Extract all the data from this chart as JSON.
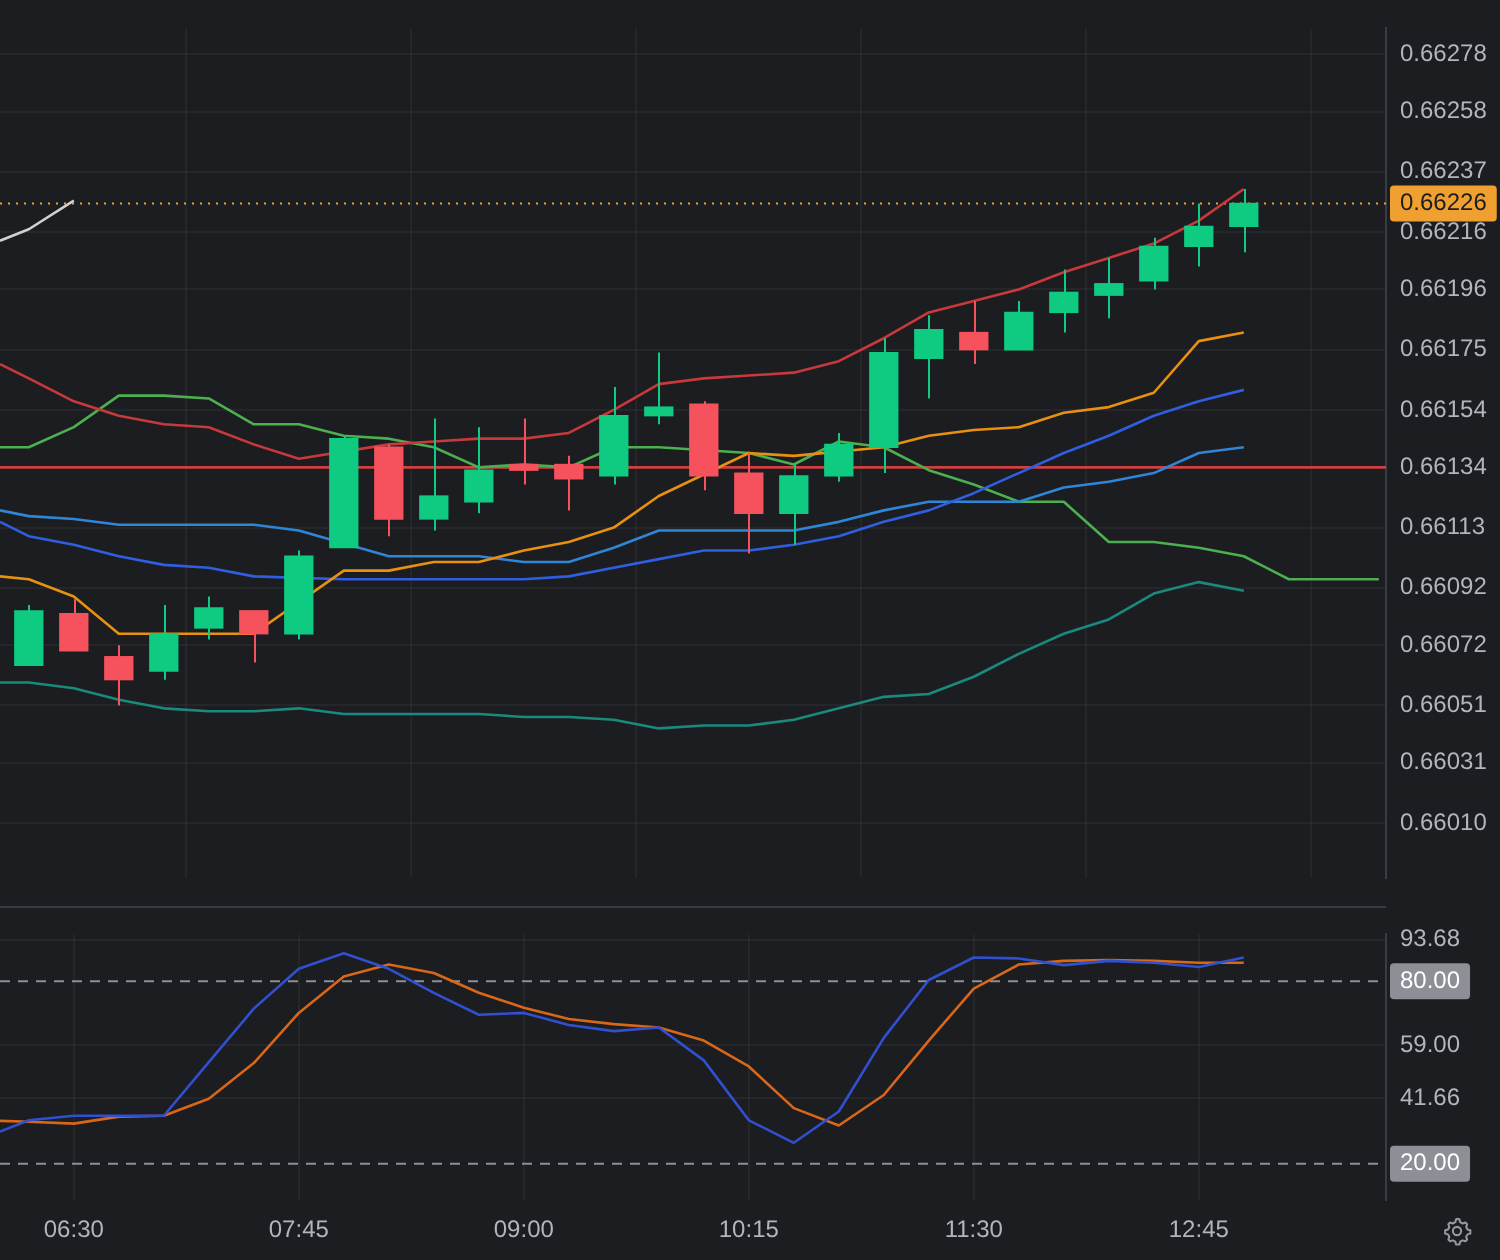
{
  "chart_data": [
    {
      "type": "candlestick",
      "x": [
        6.25,
        6.5,
        6.75,
        7,
        7.25,
        7.5,
        7.75,
        8,
        8.25,
        8.5,
        8.75,
        9,
        9.25,
        9.5,
        9.75,
        10,
        10.25,
        10.5,
        10.75,
        11,
        11.25,
        11.5,
        11.75,
        12,
        12.25,
        12.5,
        12.75,
        13
      ],
      "ohlc": [
        [
          0.66065,
          0.66086,
          0.66065,
          0.66084
        ],
        [
          0.66083,
          0.66088,
          0.6607,
          0.6607
        ],
        [
          0.66068,
          0.66072,
          0.66051,
          0.6606
        ],
        [
          0.66063,
          0.66086,
          0.6606,
          0.66076
        ],
        [
          0.66078,
          0.66089,
          0.66074,
          0.66085
        ],
        [
          0.66084,
          0.66084,
          0.66066,
          0.66076
        ],
        [
          0.66076,
          0.66105,
          0.66074,
          0.66103
        ],
        [
          0.66106,
          0.66145,
          0.66106,
          0.66144
        ],
        [
          0.66141,
          0.66142,
          0.6611,
          0.66116
        ],
        [
          0.66116,
          0.66151,
          0.66112,
          0.66124
        ],
        [
          0.66122,
          0.66148,
          0.66118,
          0.66133
        ],
        [
          0.66135,
          0.66151,
          0.66128,
          0.66133
        ],
        [
          0.66135,
          0.66138,
          0.66119,
          0.6613
        ],
        [
          0.66131,
          0.66162,
          0.66128,
          0.66152
        ],
        [
          0.66152,
          0.66174,
          0.66149,
          0.66155
        ],
        [
          0.66156,
          0.66157,
          0.66126,
          0.66131
        ],
        [
          0.66132,
          0.66139,
          0.66104,
          0.66118
        ],
        [
          0.66118,
          0.66135,
          0.66107,
          0.66131
        ],
        [
          0.66131,
          0.66146,
          0.66129,
          0.66142
        ],
        [
          0.66141,
          0.66179,
          0.66132,
          0.66174
        ],
        [
          0.66172,
          0.66187,
          0.66158,
          0.66182
        ],
        [
          0.66181,
          0.66192,
          0.6617,
          0.66175
        ],
        [
          0.66175,
          0.66192,
          0.66175,
          0.66188
        ],
        [
          0.66188,
          0.66203,
          0.66181,
          0.66195
        ],
        [
          0.66194,
          0.66207,
          0.66186,
          0.66198
        ],
        [
          0.66199,
          0.66214,
          0.66196,
          0.66211
        ],
        [
          0.66211,
          0.66226,
          0.66204,
          0.66218
        ],
        [
          0.66218,
          0.66231,
          0.66209,
          0.66226
        ]
      ],
      "colors": [
        "#0ecb81",
        "#f6525d",
        "#f6525d",
        "#0ecb81",
        "#0ecb81",
        "#f6525d",
        "#0ecb81",
        "#0ecb81",
        "#f6525d",
        "#0ecb81",
        "#0ecb81",
        "#f6525d",
        "#f6525d",
        "#0ecb81",
        "#0ecb81",
        "#f6525d",
        "#f6525d",
        "#0ecb81",
        "#0ecb81",
        "#0ecb81",
        "#0ecb81",
        "#f6525d",
        "#0ecb81",
        "#0ecb81",
        "#0ecb81",
        "#0ecb81",
        "#0ecb81",
        "#0ecb81"
      ],
      "series": [
        {
          "type": "line",
          "color": "#c8393c",
          "x": [
            6.09,
            6.25,
            6.5,
            6.75,
            7,
            7.25,
            7.5,
            7.75,
            8,
            8.25,
            8.5,
            8.75,
            9,
            9.25,
            9.5,
            9.75,
            10,
            10.25,
            10.5,
            10.75,
            11,
            11.25,
            11.5,
            11.75,
            12,
            12.25,
            12.5,
            12.75,
            13
          ],
          "values": [
            0.6617,
            0.66165,
            0.66157,
            0.66152,
            0.66149,
            0.66148,
            0.66142,
            0.66137,
            null,
            0.66142,
            0.66143,
            0.66144,
            0.66144,
            0.66146,
            0.66154,
            0.66163,
            0.66165,
            0.66166,
            0.66167,
            0.66171,
            0.66179,
            0.66188,
            0.66192,
            0.66196,
            0.66202,
            0.66207,
            0.66212,
            0.6622,
            0.66231
          ]
        },
        {
          "type": "line",
          "color": "#e8900f",
          "x": [
            6.09,
            6.25,
            6.5,
            6.75,
            7,
            7.25,
            7.5,
            7.75,
            8,
            8.25,
            8.5,
            8.75,
            9,
            9.25,
            9.5,
            9.75,
            10,
            10.25,
            10.5,
            10.75,
            11,
            11.25,
            11.5,
            11.75,
            12,
            12.25,
            12.5,
            12.75,
            13
          ],
          "values": [
            0.66096,
            0.66095,
            0.66089,
            0.66076,
            0.66076,
            0.66076,
            0.66076,
            null,
            0.66098,
            0.66098,
            0.66101,
            0.66101,
            0.66105,
            0.66108,
            0.66113,
            0.66124,
            null,
            0.66139,
            0.66138,
            null,
            0.66141,
            0.66145,
            0.66147,
            0.66148,
            0.66153,
            0.66155,
            0.6616,
            0.66178,
            0.66181
          ]
        },
        {
          "type": "line",
          "color": "#2f5fe0",
          "x": [
            6.09,
            6.25,
            6.5,
            6.75,
            7,
            7.25,
            7.5,
            7.75,
            8,
            8.25,
            8.5,
            8.75,
            9,
            9.25,
            9.5,
            9.75,
            10,
            10.25,
            10.5,
            10.75,
            11,
            11.25,
            11.5,
            11.75,
            12,
            12.25,
            12.5,
            12.75,
            13
          ],
          "values": [
            0.66115,
            0.6611,
            0.66107,
            0.66103,
            0.661,
            0.66099,
            0.66096,
            null,
            0.66095,
            0.66095,
            0.66095,
            0.66095,
            0.66095,
            0.66096,
            0.66099,
            0.66102,
            0.66105,
            0.66105,
            0.66107,
            0.6611,
            0.66115,
            0.66119,
            0.66125,
            0.66132,
            0.66139,
            0.66145,
            0.66152,
            0.66157,
            0.66161
          ]
        },
        {
          "type": "line",
          "color": "#2f86d6",
          "x": [
            6.09,
            6.25,
            6.5,
            6.75,
            7,
            7.25,
            7.5,
            7.75,
            8,
            8.25,
            8.5,
            8.75,
            9,
            9.25,
            9.5,
            9.75,
            10,
            10.25,
            10.5,
            10.75,
            11,
            11.25,
            11.5,
            11.75,
            12,
            12.25,
            12.5,
            12.75,
            13
          ],
          "values": [
            0.66119,
            0.66117,
            0.66116,
            0.66114,
            0.66114,
            0.66114,
            0.66114,
            0.66112,
            null,
            0.66103,
            0.66103,
            0.66103,
            0.66101,
            0.66101,
            0.66106,
            0.66112,
            0.66112,
            0.66112,
            0.66112,
            0.66115,
            0.66119,
            0.66122,
            0.66122,
            0.66122,
            0.66127,
            0.66129,
            0.66132,
            0.66139,
            0.66141
          ]
        },
        {
          "type": "line",
          "color": "#1a8a7c",
          "x": [
            6.09,
            6.25,
            6.5,
            6.75,
            7,
            7.25,
            7.5,
            7.75,
            8,
            8.25,
            8.5,
            8.75,
            9,
            9.25,
            9.5,
            9.75,
            10,
            10.25,
            10.5,
            10.75,
            11,
            11.25,
            11.5,
            11.75,
            12,
            12.25,
            12.5,
            12.75,
            13
          ],
          "values": [
            0.66059,
            0.66059,
            0.66057,
            0.66053,
            0.6605,
            0.66049,
            0.66049,
            0.6605,
            0.66048,
            0.66048,
            0.66048,
            0.66048,
            0.66047,
            0.66047,
            0.66046,
            0.66043,
            0.66044,
            0.66044,
            0.66046,
            0.6605,
            0.66054,
            0.66055,
            0.66061,
            0.66069,
            0.66076,
            0.66081,
            0.6609,
            0.66094,
            0.66091
          ]
        },
        {
          "type": "line",
          "color": "#4caf50",
          "x": [
            6.09,
            6.25,
            6.5,
            6.75,
            7,
            7.25,
            7.5,
            7.75,
            8,
            8.25,
            8.5,
            8.75,
            9,
            9.25,
            9.5,
            9.75,
            10,
            10.25,
            10.5,
            10.75,
            11,
            11.25,
            11.5,
            11.75,
            12,
            12.25,
            12.5,
            12.75,
            13,
            13.25,
            13.5,
            13.75
          ],
          "values": [
            0.66141,
            0.66141,
            0.66148,
            0.66159,
            0.66159,
            0.66158,
            0.66149,
            0.66149,
            0.66145,
            0.66144,
            0.66141,
            0.66134,
            0.66135,
            0.66134,
            0.66141,
            0.66141,
            null,
            0.66139,
            0.66135,
            0.66143,
            0.66141,
            0.66133,
            0.66128,
            0.66122,
            0.66122,
            0.66108,
            0.66108,
            0.66106,
            0.66103,
            0.66095,
            0.66095,
            0.66095
          ]
        },
        {
          "type": "line",
          "color": "#d04040",
          "x": [
            6.09,
            13.79
          ],
          "values": [
            0.66134,
            0.66134
          ]
        },
        {
          "type": "line",
          "color": "#d0d0d0",
          "x": [
            6.09,
            6.25,
            6.5
          ],
          "values": [
            0.66213,
            0.66217,
            0.66227
          ]
        }
      ],
      "xlim": [
        6.09,
        13.79
      ],
      "xticks": [
        {
          "value": 6.5,
          "label": null
        },
        {
          "value": 7.75,
          "label": null
        },
        {
          "value": 9,
          "label": null
        },
        {
          "value": 10.25,
          "label": null
        },
        {
          "value": 11.5,
          "label": null
        },
        {
          "value": 12.75,
          "label": null
        }
      ],
      "ylim": [
        0.65991,
        0.66287
      ],
      "yticks": [
        {
          "value": 0.6601,
          "label": "0.66010"
        },
        0.66031,
        0.66051,
        0.66072,
        0.66092,
        0.66113,
        0.66134,
        0.66154,
        0.66175,
        0.66196,
        0.66216,
        0.66237,
        0.66258,
        0.66278
      ],
      "ref_lines": [
        {
          "axis": "y",
          "value": 0.66226,
          "label": "0.66226",
          "color": "#f0a030",
          "line_style": "dotted"
        }
      ],
      "marker": "none",
      "grid": true,
      "tick_labels": "y"
    },
    {
      "type": "line",
      "x": [
        6.09,
        6.25,
        6.5,
        6.75,
        7,
        7.25,
        7.5,
        7.75,
        8,
        8.25,
        8.5,
        8.75,
        9,
        9.25,
        9.5,
        9.75,
        10,
        10.25,
        10.5,
        10.75,
        11,
        11.25,
        11.5,
        11.75,
        12,
        12.25,
        12.5,
        12.75,
        13
      ],
      "series": [
        {
          "color": "#3050d0",
          "values": [
            30.6,
            34.3,
            35.8,
            35.8,
            35.8,
            53.4,
            71.0,
            84.1,
            89.2,
            84.1,
            76.2,
            69.0,
            69.6,
            65.6,
            63.6,
            64.8,
            54.0,
            34.3,
            26.9,
            37.2,
            61.4,
            80.4,
            87.8,
            87.5,
            85.3,
            86.7,
            86.1,
            84.7,
            87.8
          ]
        },
        {
          "color": "#d8671a",
          "values": [
            34.1,
            33.8,
            33.2,
            35.5,
            35.8,
            41.4,
            53.1,
            69.6,
            81.6,
            85.5,
            82.7,
            76.2,
            71.3,
            67.6,
            65.9,
            64.8,
            60.5,
            52.0,
            38.3,
            32.6,
            42.6,
            60.5,
            77.6,
            85.5,
            86.7,
            87.0,
            86.7,
            86.1,
            86.1
          ]
        }
      ],
      "xlim": [
        6.09,
        13.79
      ],
      "xticks": [
        {
          "value": 6.5,
          "label": "06:30"
        },
        {
          "value": 7.75,
          "label": "07:45"
        },
        {
          "value": 9,
          "label": "09:00"
        },
        {
          "value": 10.25,
          "label": "10:15"
        },
        {
          "value": 11.5,
          "label": "11:30"
        },
        {
          "value": 12.75,
          "label": "12:45"
        }
      ],
      "ylim": [
        8.1,
        95.4
      ],
      "yticks": [
        41.66,
        {
          "value": 59,
          "label": "59.00"
        },
        93.68
      ],
      "ref_lines": [
        {
          "axis": "y",
          "value": 80,
          "label": "80.00",
          "color": "#8c8f96",
          "line_style": "dashed"
        },
        {
          "axis": "y",
          "value": 20,
          "label": "20.00",
          "color": "#8c8f96",
          "line_style": "dashed"
        }
      ],
      "marker": "none",
      "grid": true
    }
  ]
}
